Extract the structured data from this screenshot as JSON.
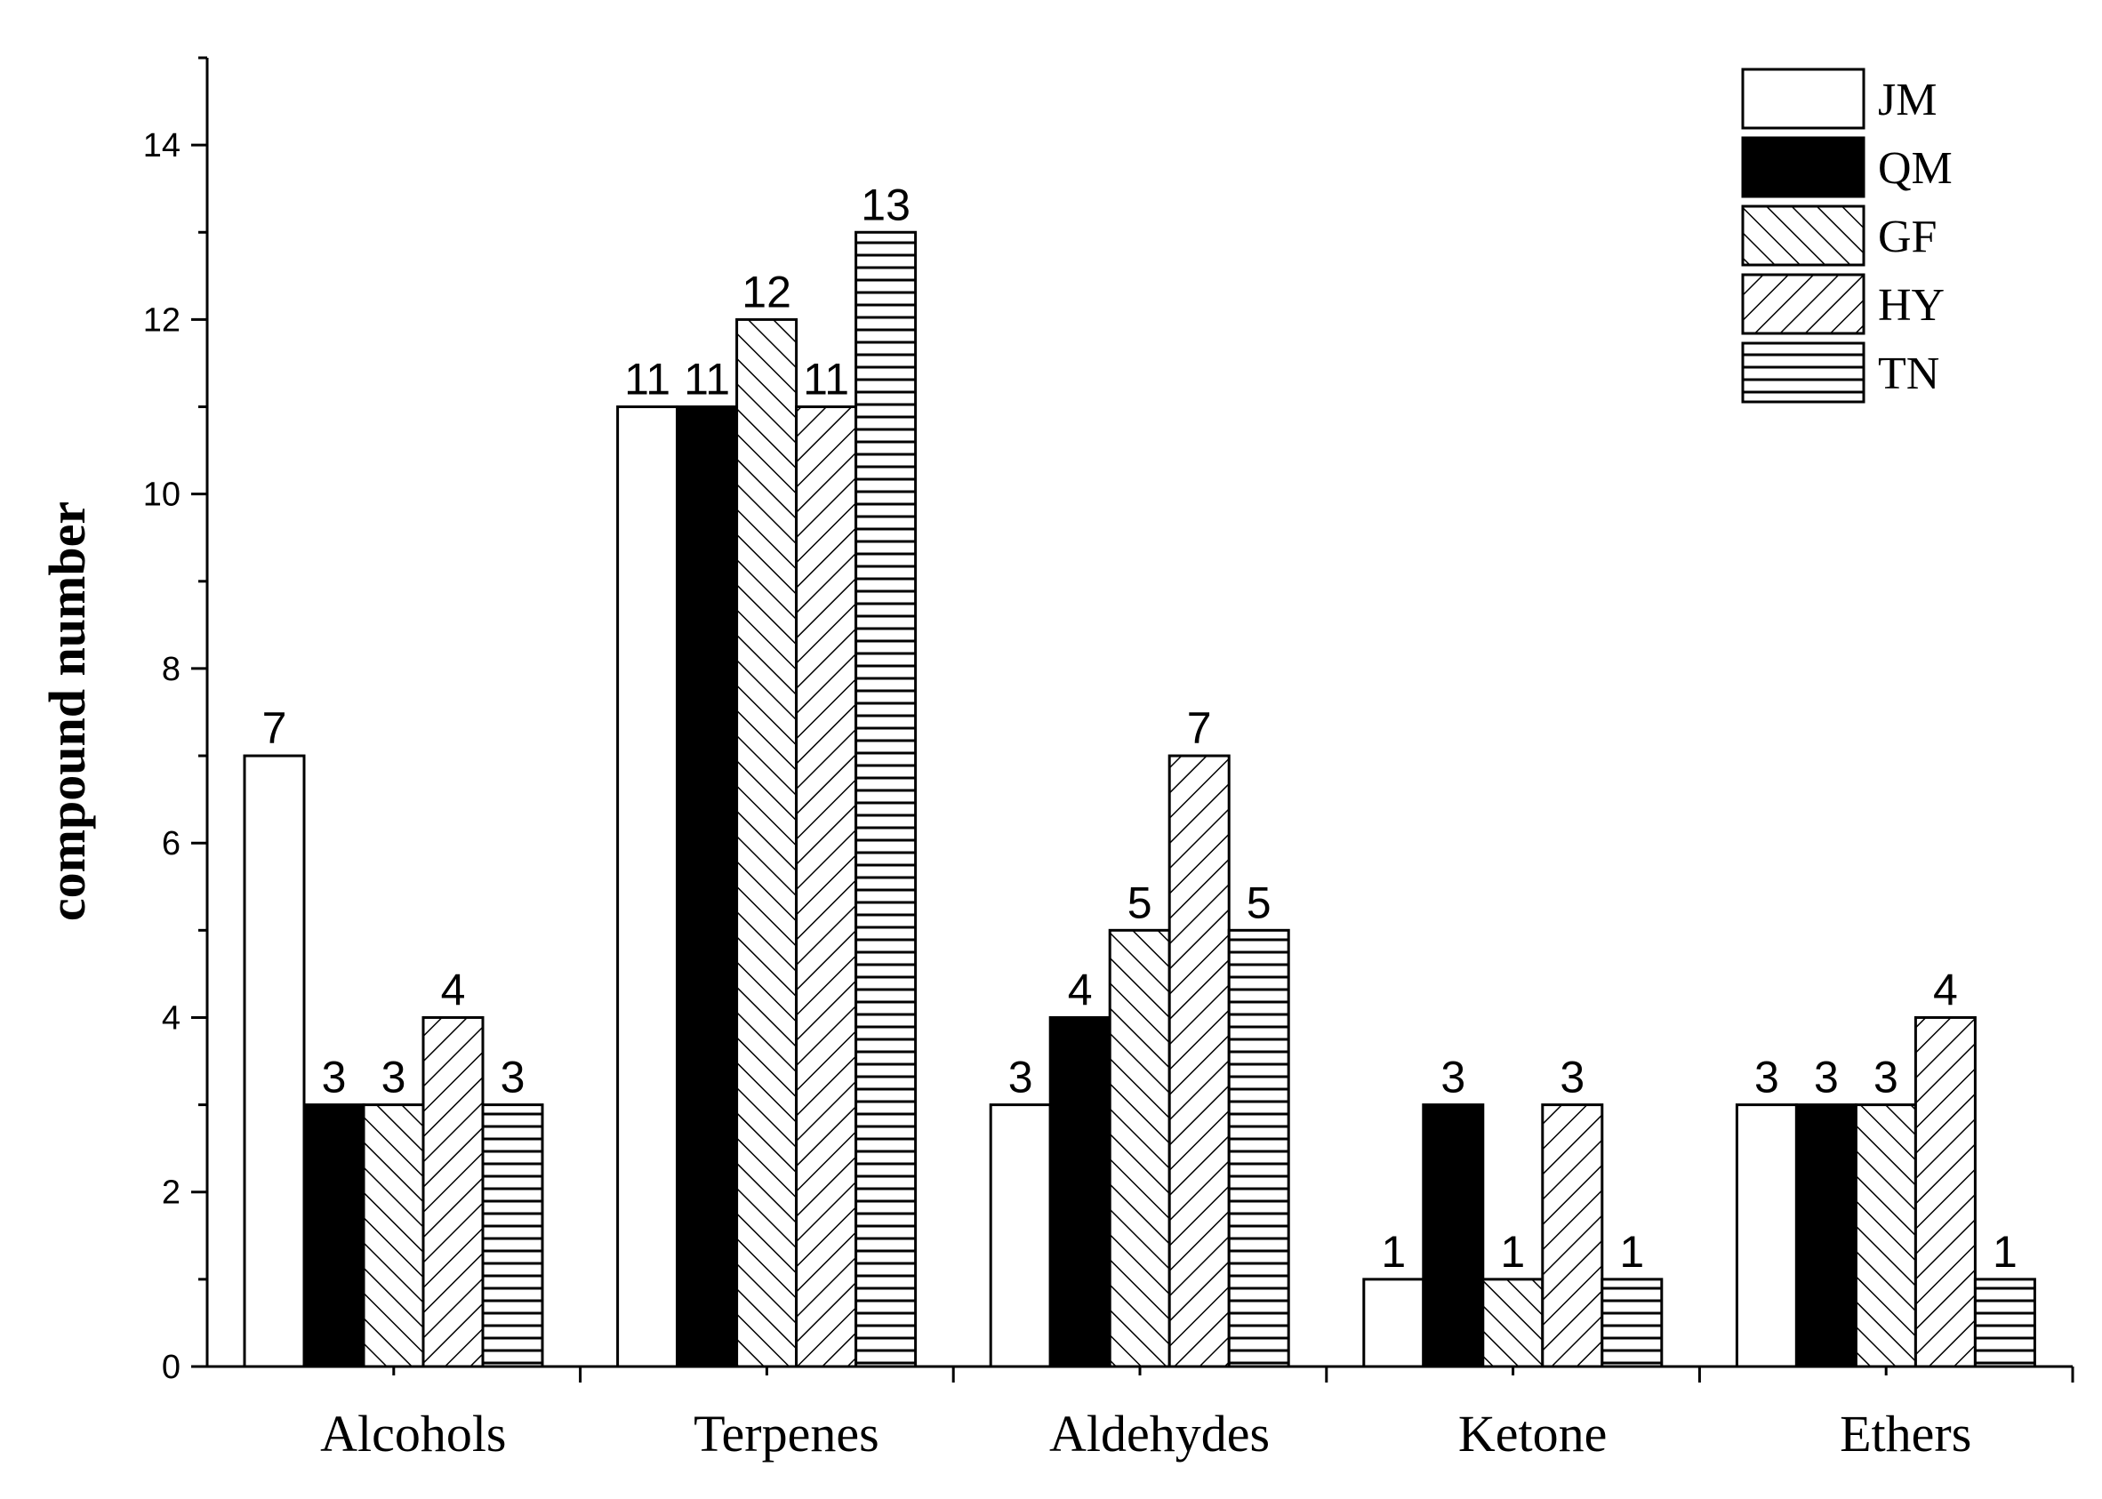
{
  "chart_data": {
    "type": "bar",
    "title": "",
    "xlabel": "",
    "ylabel": "compound number",
    "ylim": [
      0,
      15
    ],
    "yticks": [
      0,
      2,
      4,
      6,
      8,
      10,
      12,
      14
    ],
    "categories": [
      "Alcohols",
      "Terpenes",
      "Aldehydes",
      "Ketone",
      "Ethers"
    ],
    "series": [
      {
        "name": "JM",
        "pattern": "empty",
        "values": [
          7,
          11,
          3,
          1,
          3
        ]
      },
      {
        "name": "QM",
        "pattern": "solid",
        "values": [
          3,
          11,
          4,
          3,
          3
        ]
      },
      {
        "name": "GF",
        "pattern": "backslash",
        "values": [
          3,
          12,
          5,
          1,
          3
        ]
      },
      {
        "name": "HY",
        "pattern": "slash",
        "values": [
          4,
          11,
          7,
          3,
          4
        ]
      },
      {
        "name": "TN",
        "pattern": "horizontal",
        "values": [
          3,
          13,
          5,
          1,
          1
        ]
      }
    ],
    "legend_position": "top-right",
    "grid": false,
    "colors": {
      "stroke": "#000000",
      "fill": "#000000",
      "background": "#ffffff"
    }
  }
}
